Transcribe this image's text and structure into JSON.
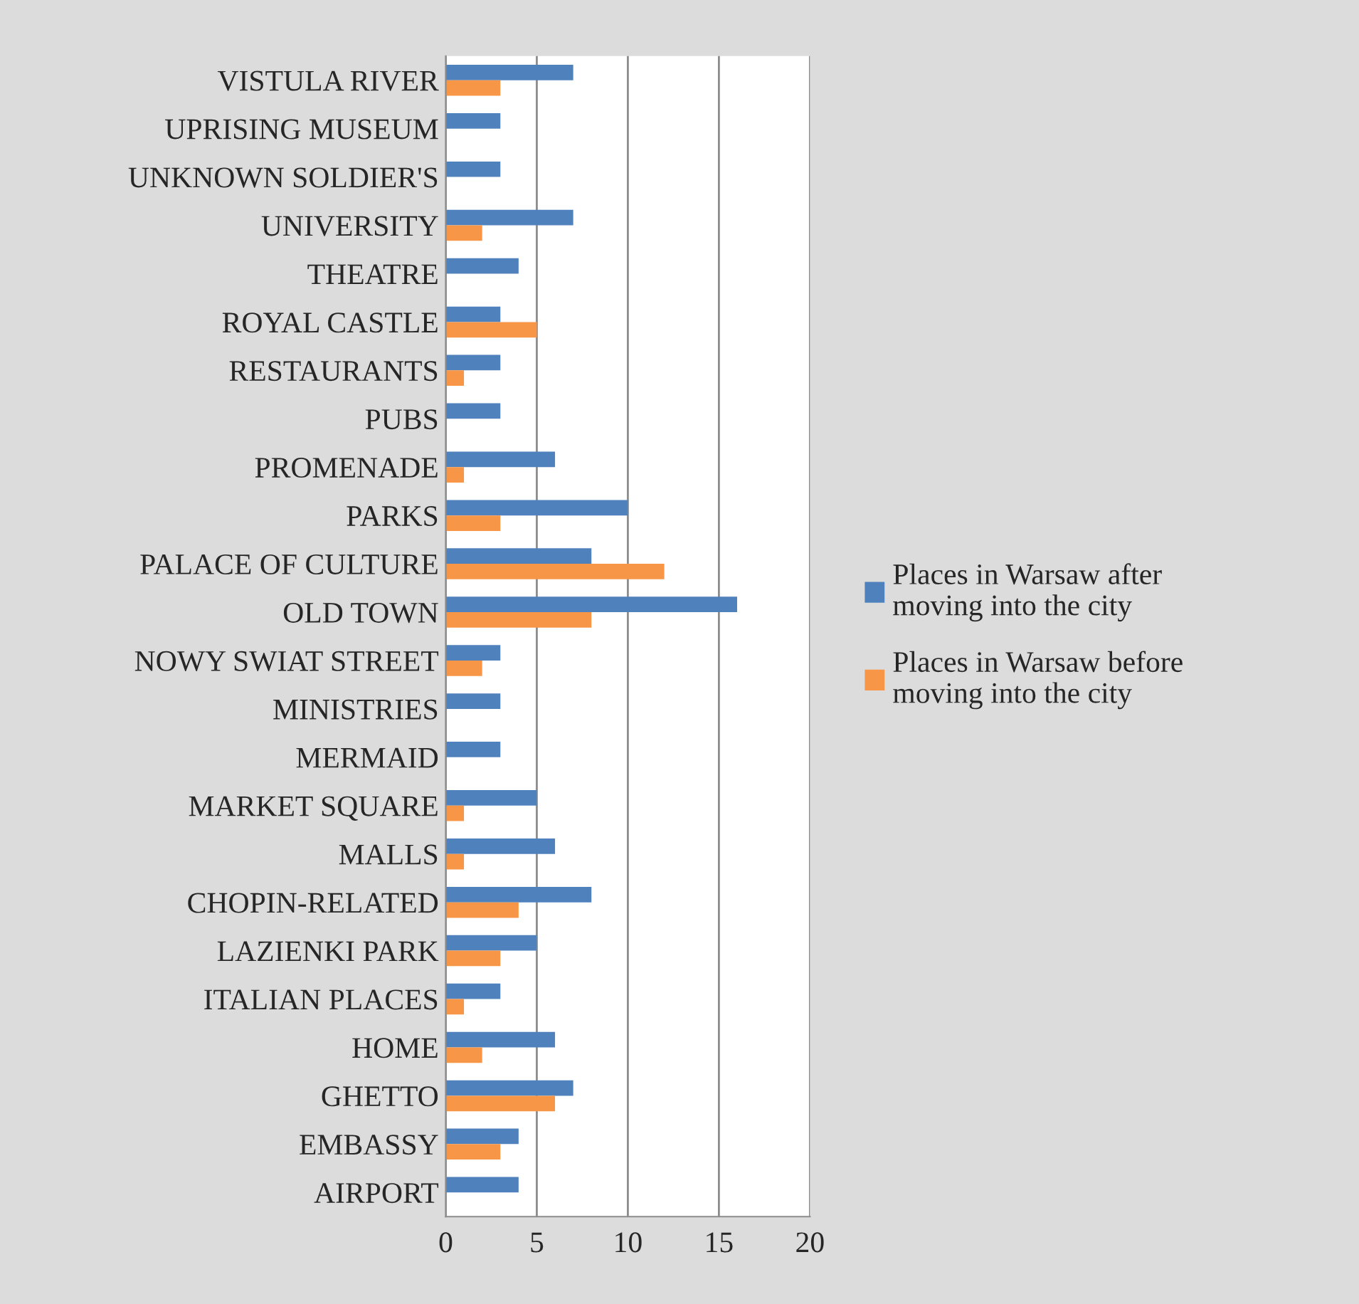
{
  "chart_data": {
    "type": "bar",
    "orientation": "horizontal",
    "categories": [
      "VISTULA RIVER",
      "UPRISING MUSEUM",
      "UNKNOWN SOLDIER'S",
      "UNIVERSITY",
      "THEATRE",
      "ROYAL CASTLE",
      "RESTAURANTS",
      "PUBS",
      "PROMENADE",
      "PARKS",
      "PALACE OF CULTURE",
      "OLD TOWN",
      "NOWY SWIAT STREET",
      "MINISTRIES",
      "MERMAID",
      "MARKET SQUARE",
      "MALLS",
      "CHOPIN-RELATED",
      "LAZIENKI PARK",
      "ITALIAN PLACES",
      "HOME",
      "GHETTO",
      "EMBASSY",
      "AIRPORT"
    ],
    "series": [
      {
        "name": "Places in Warsaw after moving into the city",
        "color": "#4f81bd",
        "values": [
          7,
          3,
          3,
          7,
          4,
          3,
          3,
          3,
          6,
          10,
          8,
          16,
          3,
          3,
          3,
          5,
          6,
          8,
          5,
          3,
          6,
          7,
          4,
          4
        ]
      },
      {
        "name": "Places in Warsaw before moving into the city",
        "color": "#f79646",
        "values": [
          3,
          0,
          0,
          2,
          0,
          5,
          1,
          0,
          1,
          3,
          12,
          8,
          2,
          0,
          0,
          1,
          1,
          4,
          3,
          1,
          2,
          6,
          3,
          0
        ]
      }
    ],
    "xlim": [
      0,
      20
    ],
    "xticks": [
      0,
      5,
      10,
      15,
      20
    ],
    "grid": "x",
    "legend": "right"
  }
}
